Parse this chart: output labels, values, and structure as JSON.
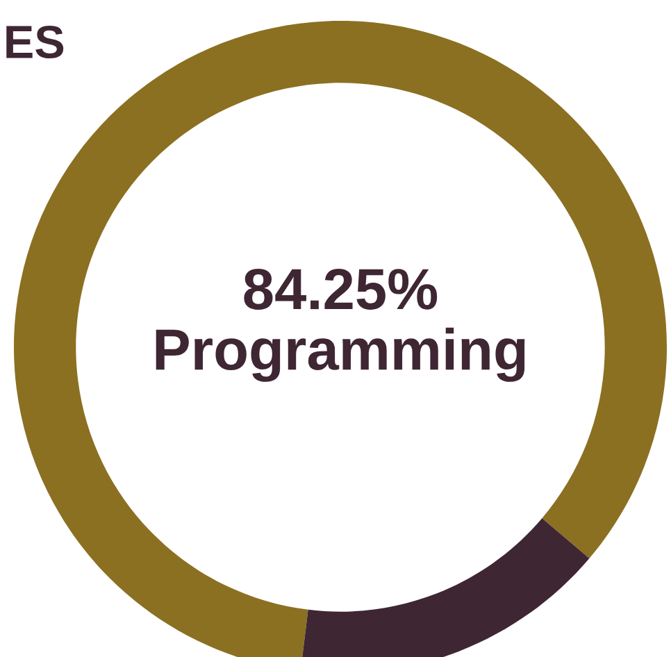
{
  "chart_data": {
    "type": "donut",
    "categories": [
      "Programming",
      null
    ],
    "values": [
      84.25,
      15.75
    ],
    "colors": [
      "#8b7022",
      "#3f2633"
    ],
    "value_labels": [
      "84.25%",
      null
    ],
    "annotations": [
      "ES"
    ]
  }
}
